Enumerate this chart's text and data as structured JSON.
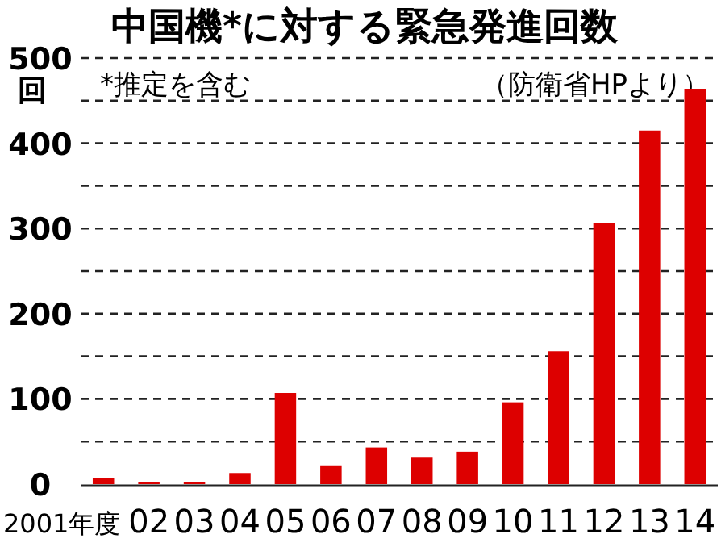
{
  "chart_data": {
    "type": "bar",
    "title": "中国機*に対する緊急発進回数",
    "ylabel": "回",
    "annotations": [
      "*推定を含む",
      "（防衛省HPより）"
    ],
    "categories": [
      "2001年度",
      "02",
      "03",
      "04",
      "05",
      "06",
      "07",
      "08",
      "09",
      "10",
      "11",
      "12",
      "13",
      "14"
    ],
    "values": [
      7,
      2,
      2,
      13,
      107,
      22,
      43,
      31,
      38,
      96,
      156,
      306,
      415,
      464
    ],
    "color": "#dd0000",
    "ylim": [
      0,
      500
    ],
    "yticks": [
      0,
      {
        "value": 50,
        "label": null
      },
      100,
      {
        "value": 150,
        "label": null
      },
      200,
      {
        "value": 250,
        "label": null
      },
      300,
      {
        "value": 350,
        "label": null
      },
      400,
      {
        "value": 450,
        "label": null
      },
      500
    ],
    "grid": "y"
  }
}
